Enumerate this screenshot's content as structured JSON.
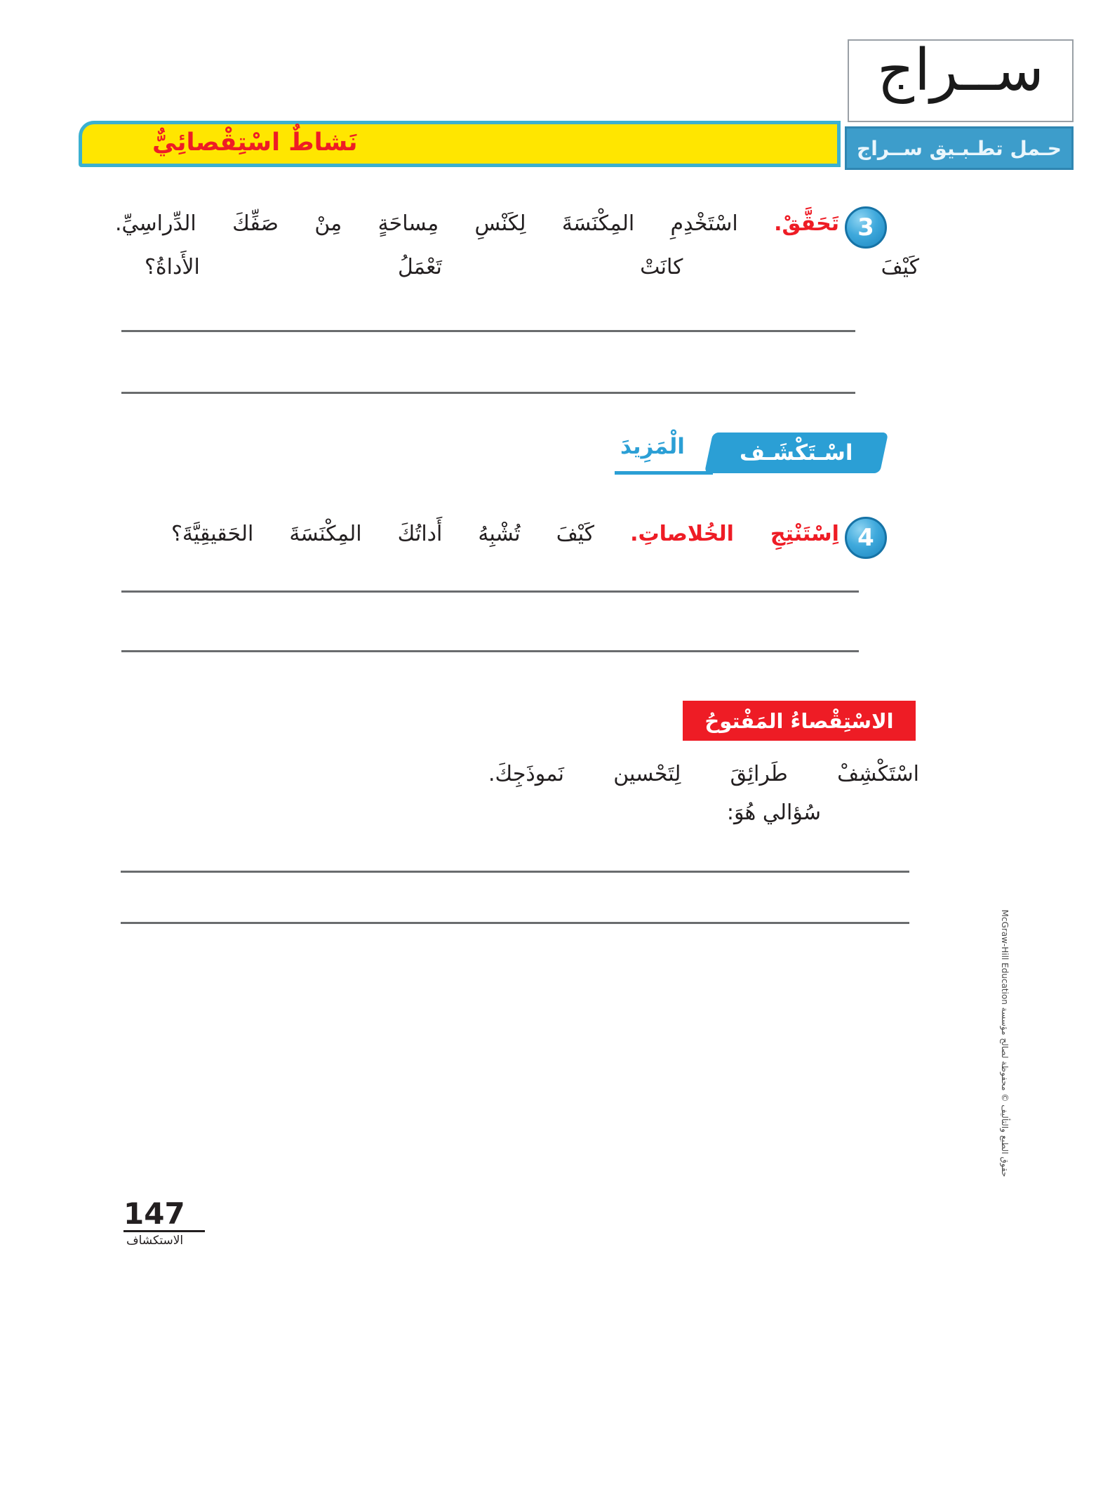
{
  "siraj": {
    "logo": "ســراج",
    "download_label": "حـمل تطـبـيق ســراج"
  },
  "activity_banner": {
    "title": "نَشاطٌ اسْتِقْصائِيٌّ"
  },
  "question3": {
    "number": "3",
    "label": "تَحَقَّقْ.",
    "text": "اسْتَخْدِمِ المِكْنَسَةَ لِكَنْسِ مِساحَةٍ مِنْ صَفِّكَ الدِّراسِيِّ.",
    "text_line2": "كَيْفَ كانَتْ تَعْمَلُ الأَداةُ؟"
  },
  "explore_more": {
    "explore": "اسْـتَكْشَـف",
    "more": "الْمَزِيدَ"
  },
  "question4": {
    "number": "4",
    "label": "اِسْتَنْتِجِ الخُلاصاتِ.",
    "text": "كَيْفَ تُشْبِهُ أَداتُكَ المِكْنَسَةَ الحَقيقِيَّةَ؟"
  },
  "open_inquiry": {
    "title": "الاسْتِقْصاءُ المَفْتوحُ",
    "text": "اسْتَكْشِفْ طَرائِقَ لِتَحْسين نَموذَجِكَ.",
    "prompt": "سُؤالي هُوَ:"
  },
  "footer": {
    "page_number": "147",
    "section_label": "الاستكشاف",
    "copyright": "حقوق الطبع والتأليف © محفوظة لصالح مؤسسة McGraw-Hill Education"
  }
}
